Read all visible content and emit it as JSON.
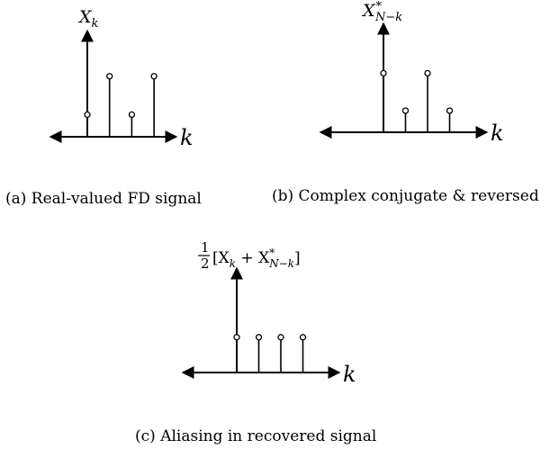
{
  "panels": [
    {
      "id": "a",
      "y_label": {
        "base": "X",
        "sub": "k",
        "sup": ""
      },
      "x_label": "k",
      "caption": "(a) Real-valued FD signal",
      "stem_values": [
        0.3,
        0.82,
        0.3,
        0.82
      ]
    },
    {
      "id": "b",
      "y_label": {
        "base": "X",
        "sub": "N−k",
        "sup": "*"
      },
      "x_label": "k",
      "caption": "(b) Complex conjugate & reversed",
      "stem_values": [
        0.82,
        0.3,
        0.82,
        0.3
      ]
    },
    {
      "id": "c",
      "y_label": {
        "prefix_num": "1",
        "prefix_den": "2",
        "expr": "[X",
        "sub1": "k",
        "mid": " + X",
        "sup2": "*",
        "sub2": "N−k",
        "close": "]"
      },
      "x_label": "k",
      "caption": "(c) Aliasing in recovered signal",
      "stem_values": [
        0.56,
        0.56,
        0.56,
        0.56
      ]
    }
  ]
}
